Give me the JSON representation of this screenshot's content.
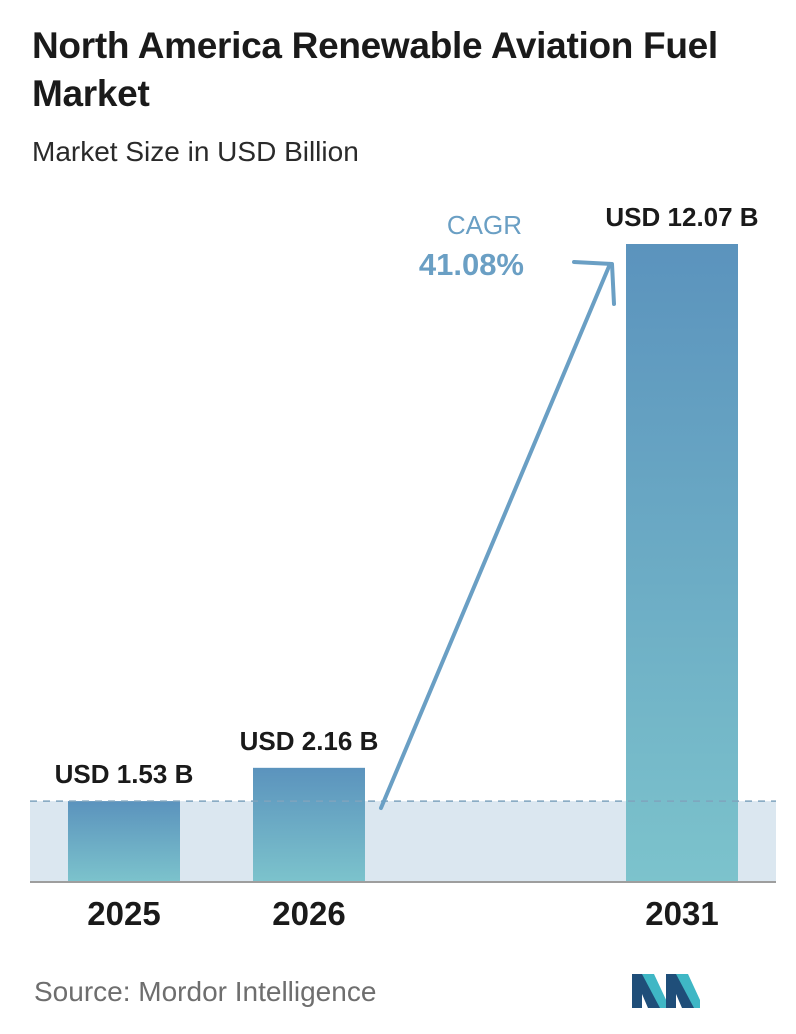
{
  "title": "North America Renewable Aviation Fuel Market",
  "subtitle": "Market Size in USD Billion",
  "source": "Source:  Mordor Intelligence",
  "logo": {
    "name": "mordor-intelligence-logo",
    "colors": [
      "#1f4e79",
      "#3fb7c5"
    ]
  },
  "cagr": {
    "label": "CAGR",
    "value": "41.08%"
  },
  "colors": {
    "bar_top": "#5b93bd",
    "bar_bottom": "#7cc3cc",
    "band": "#dbe7f0",
    "accent": "#6a9fc4",
    "baseline": "#9e9e9e",
    "dash": "#7fa4bd"
  },
  "chart_data": {
    "type": "bar",
    "title": "North America Renewable Aviation Fuel Market",
    "subtitle": "Market Size in USD Billion",
    "categories": [
      "2025",
      "2026",
      "2031"
    ],
    "values": [
      1.53,
      2.16,
      12.07
    ],
    "data_labels": [
      "USD 1.53 B",
      "USD 2.16 B",
      "USD 12.07 B"
    ],
    "unit": "USD Billion",
    "grid": false,
    "legend": "none",
    "ylim": [
      0,
      12.07
    ],
    "annotations": [
      {
        "type": "cagr-arrow",
        "from": "2026",
        "to": "2031",
        "label": "CAGR",
        "value": "41.08%"
      }
    ]
  }
}
